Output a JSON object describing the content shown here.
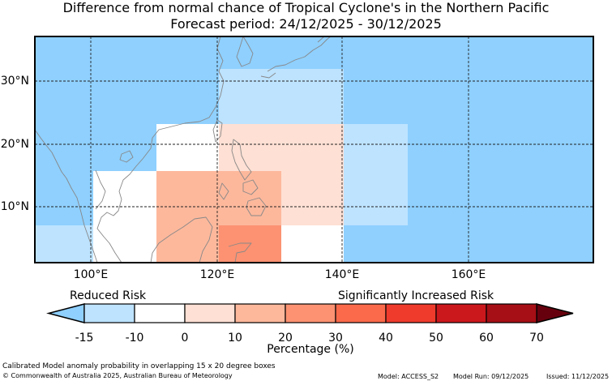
{
  "title_line1": "Difference from normal chance of Tropical Cyclone's in the Northern Pacific",
  "title_line2": "Forecast period: 24/12/2025 - 30/12/2025",
  "map": {
    "lon_labels": [
      "100°E",
      "120°E",
      "140°E",
      "160°E"
    ],
    "lat_labels": [
      "30°N",
      "20°N",
      "10°N"
    ],
    "ocean_base_color": "#8fd0ff",
    "land_outline_color": "#888888"
  },
  "anomaly_boxes": [
    {
      "category": "-15 to -10",
      "color": "#8fd0ff"
    },
    {
      "category": "-10 to 0",
      "color": "#bde3ff"
    },
    {
      "category": "0 to 10",
      "color": "#ffffff"
    },
    {
      "category": "10 to 20",
      "color": "#ffe0d4"
    },
    {
      "category": "20 to 30",
      "color": "#fdb89c"
    },
    {
      "category": "30 to 40",
      "color": "#fc9272"
    }
  ],
  "legend": {
    "reduced_label": "Reduced Risk",
    "increased_label": "Significantly Increased Risk",
    "ticks": [
      "-15",
      "-10",
      "0",
      "10",
      "20",
      "30",
      "40",
      "50",
      "60",
      "70"
    ],
    "colors": [
      "#8fd0ff",
      "#bde3ff",
      "#ffffff",
      "#ffe0d4",
      "#fdb89c",
      "#fc9272",
      "#fb6a4a",
      "#ef3b2c",
      "#cb181d",
      "#a50f15",
      "#67000d"
    ],
    "xlabel": "Percentage (%)"
  },
  "footer": {
    "note": "Calibrated Model anomaly probability in overlapping 15 x 20 degree boxes",
    "copyright": "© Commonwealth of Australia 2025, Australian Bureau of Meteorology",
    "model": "Model: ACCESS_S2",
    "run": "Model Run: 09/12/2025",
    "issued": "Issued: 11/12/2025"
  }
}
